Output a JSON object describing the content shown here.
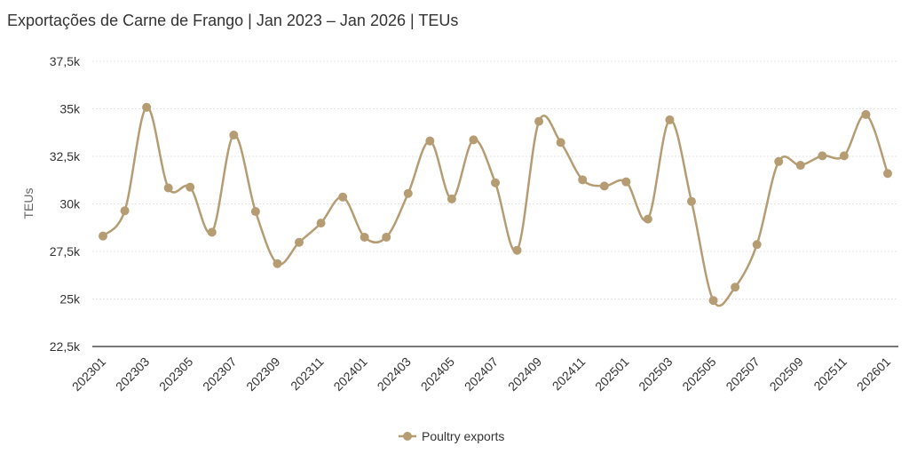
{
  "chart_data": {
    "type": "line",
    "title": "Exportações de Carne de Frango | Jan 2023 – Jan 2026 | TEUs",
    "xlabel": "",
    "ylabel": "TEUs",
    "ylim": [
      22500,
      37500
    ],
    "yticks": [
      22500,
      25000,
      27500,
      30000,
      32500,
      35000,
      37500
    ],
    "ytick_labels": [
      "22,5k",
      "25k",
      "27,5k",
      "30k",
      "32,5k",
      "35k",
      "37,5k"
    ],
    "grid": true,
    "legend_position": "bottom-center",
    "categories": [
      "202301",
      "202302",
      "202303",
      "202304",
      "202305",
      "202306",
      "202307",
      "202308",
      "202309",
      "202310",
      "202311",
      "202312",
      "202401",
      "202402",
      "202403",
      "202404",
      "202405",
      "202406",
      "202407",
      "202408",
      "202409",
      "202410",
      "202411",
      "202412",
      "202501",
      "202502",
      "202503",
      "202504",
      "202505",
      "202506",
      "202507",
      "202508",
      "202509",
      "202510",
      "202511",
      "202512",
      "202601"
    ],
    "xtick_labels": [
      "202301",
      "202303",
      "202305",
      "202307",
      "202309",
      "202311",
      "202401",
      "202403",
      "202405",
      "202407",
      "202409",
      "202411",
      "202501",
      "202503",
      "202505",
      "202507",
      "202509",
      "202511",
      "202601"
    ],
    "series": [
      {
        "name": "Poultry exports",
        "color": "#b59c73",
        "values": [
          28310,
          29640,
          35080,
          30840,
          30880,
          28510,
          33620,
          29600,
          26860,
          27980,
          28990,
          30360,
          28250,
          28250,
          30550,
          33310,
          30260,
          33370,
          31110,
          27560,
          34340,
          33230,
          31270,
          30940,
          31160,
          29200,
          34420,
          30130,
          24920,
          25620,
          27860,
          32230,
          32030,
          32530,
          32530,
          34700,
          31600
        ]
      }
    ]
  }
}
